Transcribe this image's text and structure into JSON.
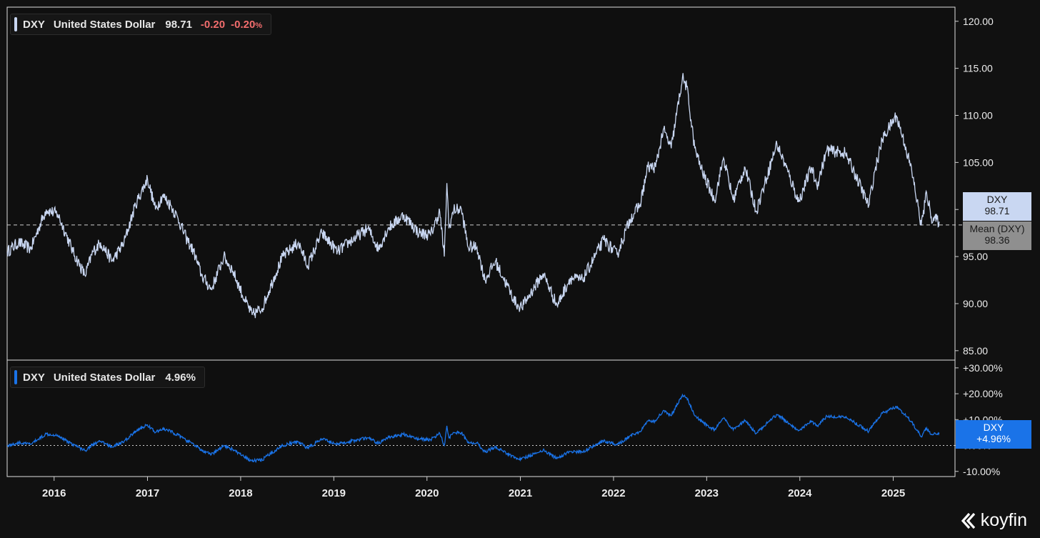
{
  "legend_top": {
    "ticker": "DXY",
    "name": "United States Dollar",
    "price": "98.71",
    "change": "-0.20",
    "change_pct": "-0.20",
    "pct_sign": "%"
  },
  "legend_bottom": {
    "ticker": "DXY",
    "name": "United States Dollar",
    "value": "4.96%"
  },
  "price_tag": {
    "ticker": "DXY",
    "value": "98.71"
  },
  "mean_tag": {
    "label": "Mean (DXY)",
    "value": "98.36"
  },
  "pct_tag": {
    "ticker": "DXY",
    "value": "+4.96%"
  },
  "brand": {
    "name": "koyfin"
  },
  "colors": {
    "background": "#111111",
    "price_line": "#c9d7f2",
    "pct_line": "#1a73e8",
    "negative": "#f26d6d",
    "mean_tag_bg": "#8f8f8f",
    "price_tag_bg": "#c9d7f2"
  },
  "chart_data": [
    {
      "type": "line",
      "series": [
        {
          "name": "DXY",
          "values": [
            [
              "2015-07-01",
              95.5
            ],
            [
              "2015-08-15",
              96.5
            ],
            [
              "2015-10-01",
              95.8
            ],
            [
              "2015-11-01",
              98.0
            ],
            [
              "2015-12-01",
              100.0
            ],
            [
              "2016-01-15",
              99.5
            ],
            [
              "2016-02-15",
              97.5
            ],
            [
              "2016-03-15",
              95.5
            ],
            [
              "2016-05-01",
              93.0
            ],
            [
              "2016-06-01",
              95.5
            ],
            [
              "2016-07-01",
              96.5
            ],
            [
              "2016-08-15",
              94.5
            ],
            [
              "2016-10-01",
              96.5
            ],
            [
              "2016-11-15",
              100.5
            ],
            [
              "2017-01-01",
              103.3
            ],
            [
              "2017-02-01",
              100.0
            ],
            [
              "2017-03-01",
              101.5
            ],
            [
              "2017-04-01",
              100.5
            ],
            [
              "2017-05-01",
              99.0
            ],
            [
              "2017-06-01",
              97.0
            ],
            [
              "2017-07-01",
              95.5
            ],
            [
              "2017-08-01",
              93.0
            ],
            [
              "2017-09-08",
              91.5
            ],
            [
              "2017-10-27",
              95.0
            ],
            [
              "2017-12-01",
              93.5
            ],
            [
              "2018-01-15",
              90.5
            ],
            [
              "2018-02-15",
              88.8
            ],
            [
              "2018-03-26",
              89.5
            ],
            [
              "2018-05-15",
              93.0
            ],
            [
              "2018-06-15",
              95.0
            ],
            [
              "2018-08-15",
              96.5
            ],
            [
              "2018-09-20",
              94.0
            ],
            [
              "2018-11-15",
              97.5
            ],
            [
              "2019-01-15",
              95.5
            ],
            [
              "2019-03-01",
              96.5
            ],
            [
              "2019-05-15",
              98.0
            ],
            [
              "2019-06-25",
              95.8
            ],
            [
              "2019-08-01",
              98.0
            ],
            [
              "2019-10-01",
              99.4
            ],
            [
              "2019-12-01",
              97.5
            ],
            [
              "2020-01-15",
              97.3
            ],
            [
              "2020-02-20",
              99.8
            ],
            [
              "2020-03-09",
              95.0
            ],
            [
              "2020-03-19",
              102.8
            ],
            [
              "2020-03-27",
              98.0
            ],
            [
              "2020-04-15",
              100.0
            ],
            [
              "2020-05-15",
              100.0
            ],
            [
              "2020-06-10",
              96.0
            ],
            [
              "2020-07-15",
              96.0
            ],
            [
              "2020-08-15",
              92.5
            ],
            [
              "2020-09-25",
              94.5
            ],
            [
              "2020-10-25",
              92.8
            ],
            [
              "2020-12-15",
              90.0
            ],
            [
              "2021-01-06",
              89.6
            ],
            [
              "2021-03-31",
              93.2
            ],
            [
              "2021-05-25",
              89.8
            ],
            [
              "2021-07-15",
              92.7
            ],
            [
              "2021-09-01",
              92.5
            ],
            [
              "2021-11-24",
              96.8
            ],
            [
              "2022-01-15",
              95.2
            ],
            [
              "2022-03-07",
              99.0
            ],
            [
              "2022-04-15",
              100.5
            ],
            [
              "2022-05-15",
              104.5
            ],
            [
              "2022-06-15",
              104.5
            ],
            [
              "2022-07-15",
              108.5
            ],
            [
              "2022-08-15",
              106.5
            ],
            [
              "2022-09-28",
              114.0
            ],
            [
              "2022-10-15",
              113.0
            ],
            [
              "2022-11-15",
              106.5
            ],
            [
              "2022-12-15",
              104.0
            ],
            [
              "2023-02-01",
              101.0
            ],
            [
              "2023-03-08",
              105.5
            ],
            [
              "2023-04-15",
              101.0
            ],
            [
              "2023-05-31",
              104.5
            ],
            [
              "2023-07-14",
              99.8
            ],
            [
              "2023-10-03",
              107.0
            ],
            [
              "2023-11-15",
              104.0
            ],
            [
              "2023-12-28",
              100.8
            ],
            [
              "2024-02-15",
              104.5
            ],
            [
              "2024-03-08",
              102.5
            ],
            [
              "2024-04-16",
              106.3
            ],
            [
              "2024-06-26",
              106.0
            ],
            [
              "2024-08-01",
              104.0
            ],
            [
              "2024-09-27",
              100.4
            ],
            [
              "2024-10-20",
              104.0
            ],
            [
              "2024-11-20",
              107.5
            ],
            [
              "2025-01-13",
              110.0
            ],
            [
              "2025-02-15",
              107.0
            ],
            [
              "2025-03-15",
              104.0
            ],
            [
              "2025-04-21",
              98.3
            ],
            [
              "2025-05-12",
              101.8
            ],
            [
              "2025-05-30",
              99.2
            ],
            [
              "2025-06-30",
              98.71
            ]
          ]
        }
      ],
      "mean": 98.36,
      "y_ticks": [
        "85.00",
        "90.00",
        "95.00",
        "100.00",
        "105.00",
        "110.00",
        "115.00",
        "120.00"
      ],
      "ylim": [
        84,
        121.5
      ],
      "x_ticks": [
        "2016",
        "2017",
        "2018",
        "2019",
        "2020",
        "2021",
        "2022",
        "2023",
        "2024",
        "2025"
      ],
      "xlim": [
        "2015-07-01",
        "2025-08-31"
      ],
      "grid": false
    },
    {
      "type": "line",
      "series": [
        {
          "name": "DXY",
          "values": [
            [
              "2015-07-01",
              0.0
            ],
            [
              "2015-08-15",
              1.0
            ],
            [
              "2015-10-01",
              0.5
            ],
            [
              "2015-11-01",
              2.5
            ],
            [
              "2015-12-01",
              4.5
            ],
            [
              "2016-01-15",
              4.0
            ],
            [
              "2016-02-15",
              2.0
            ],
            [
              "2016-03-15",
              0.5
            ],
            [
              "2016-05-01",
              -2.0
            ],
            [
              "2016-06-01",
              0.5
            ],
            [
              "2016-07-01",
              1.5
            ],
            [
              "2016-08-15",
              -0.5
            ],
            [
              "2016-10-01",
              1.5
            ],
            [
              "2016-11-15",
              5.5
            ],
            [
              "2017-01-01",
              8.0
            ],
            [
              "2017-02-01",
              5.0
            ],
            [
              "2017-03-01",
              6.5
            ],
            [
              "2017-04-01",
              5.5
            ],
            [
              "2017-05-01",
              4.0
            ],
            [
              "2017-06-01",
              2.0
            ],
            [
              "2017-07-01",
              0.5
            ],
            [
              "2017-08-01",
              -2.0
            ],
            [
              "2017-09-08",
              -3.5
            ],
            [
              "2017-10-27",
              0.0
            ],
            [
              "2017-12-01",
              -1.5
            ],
            [
              "2018-01-15",
              -4.5
            ],
            [
              "2018-02-15",
              -6.0
            ],
            [
              "2018-03-26",
              -5.5
            ],
            [
              "2018-05-15",
              -2.0
            ],
            [
              "2018-06-15",
              0.0
            ],
            [
              "2018-08-15",
              1.5
            ],
            [
              "2018-09-20",
              -1.0
            ],
            [
              "2018-11-15",
              2.5
            ],
            [
              "2019-01-15",
              0.5
            ],
            [
              "2019-03-01",
              1.5
            ],
            [
              "2019-05-15",
              3.0
            ],
            [
              "2019-06-25",
              0.8
            ],
            [
              "2019-08-01",
              3.0
            ],
            [
              "2019-10-01",
              4.3
            ],
            [
              "2019-12-01",
              2.5
            ],
            [
              "2020-01-15",
              2.3
            ],
            [
              "2020-02-20",
              4.7
            ],
            [
              "2020-03-09",
              0.0
            ],
            [
              "2020-03-19",
              7.6
            ],
            [
              "2020-03-27",
              3.0
            ],
            [
              "2020-04-15",
              5.0
            ],
            [
              "2020-05-15",
              5.0
            ],
            [
              "2020-06-10",
              1.0
            ],
            [
              "2020-07-15",
              1.0
            ],
            [
              "2020-08-15",
              -2.5
            ],
            [
              "2020-09-25",
              -0.5
            ],
            [
              "2020-10-25",
              -2.2
            ],
            [
              "2020-12-15",
              -4.8
            ],
            [
              "2021-01-06",
              -5.2
            ],
            [
              "2021-03-31",
              -1.8
            ],
            [
              "2021-05-25",
              -5.0
            ],
            [
              "2021-07-15",
              -2.3
            ],
            [
              "2021-09-01",
              -2.5
            ],
            [
              "2021-11-24",
              1.7
            ],
            [
              "2022-01-15",
              0.2
            ],
            [
              "2022-03-07",
              3.8
            ],
            [
              "2022-04-15",
              5.3
            ],
            [
              "2022-05-15",
              9.5
            ],
            [
              "2022-06-15",
              9.5
            ],
            [
              "2022-07-15",
              13.5
            ],
            [
              "2022-08-15",
              11.5
            ],
            [
              "2022-09-28",
              19.6
            ],
            [
              "2022-10-15",
              18.5
            ],
            [
              "2022-11-15",
              11.5
            ],
            [
              "2022-12-15",
              9.0
            ],
            [
              "2023-02-01",
              6.0
            ],
            [
              "2023-03-08",
              10.5
            ],
            [
              "2023-04-15",
              6.0
            ],
            [
              "2023-05-31",
              9.5
            ],
            [
              "2023-07-14",
              4.7
            ],
            [
              "2023-10-03",
              12.0
            ],
            [
              "2023-11-15",
              9.0
            ],
            [
              "2023-12-28",
              5.8
            ],
            [
              "2024-02-15",
              9.5
            ],
            [
              "2024-03-08",
              7.5
            ],
            [
              "2024-04-16",
              11.3
            ],
            [
              "2024-06-26",
              11.0
            ],
            [
              "2024-08-01",
              9.0
            ],
            [
              "2024-09-27",
              5.4
            ],
            [
              "2024-10-20",
              9.0
            ],
            [
              "2024-11-20",
              12.5
            ],
            [
              "2025-01-13",
              15.0
            ],
            [
              "2025-02-15",
              12.0
            ],
            [
              "2025-03-15",
              9.0
            ],
            [
              "2025-04-21",
              3.3
            ],
            [
              "2025-05-12",
              6.8
            ],
            [
              "2025-05-30",
              4.2
            ],
            [
              "2025-06-30",
              4.96
            ]
          ]
        }
      ],
      "y_ticks": [
        "-10.00%",
        "0.00%",
        "+10.00%",
        "+20.00%",
        "+30.00%"
      ],
      "ylim": [
        -12,
        33
      ],
      "zero_line": 0,
      "xlim": [
        "2015-07-01",
        "2025-08-31"
      ]
    }
  ]
}
